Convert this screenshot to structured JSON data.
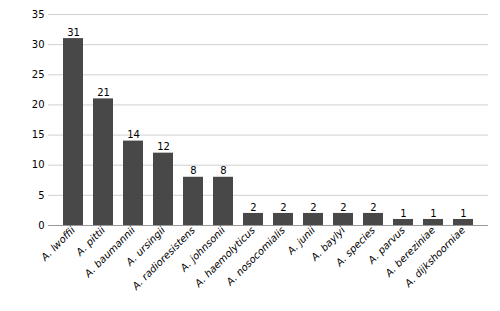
{
  "chart_data": {
    "type": "bar",
    "categories": [
      "A. lwoffii",
      "A. pittii",
      "A. baumannii",
      "A. ursingii",
      "A. radioresistens",
      "A. johnsonii",
      "A. haemolyticus",
      "A. nosocomialis",
      "A. junii",
      "A. baylyi",
      "A. species",
      "A. parvus",
      "A. bereziniae",
      "A. dijkshoorniae"
    ],
    "values": [
      31,
      21,
      14,
      12,
      8,
      8,
      2,
      2,
      2,
      2,
      2,
      1,
      1,
      1
    ],
    "color": "#484848",
    "ylim": [
      0,
      35
    ],
    "yticks": [
      0,
      5,
      10,
      15,
      20,
      25,
      30,
      35
    ],
    "grid": true,
    "data_labels": true
  }
}
